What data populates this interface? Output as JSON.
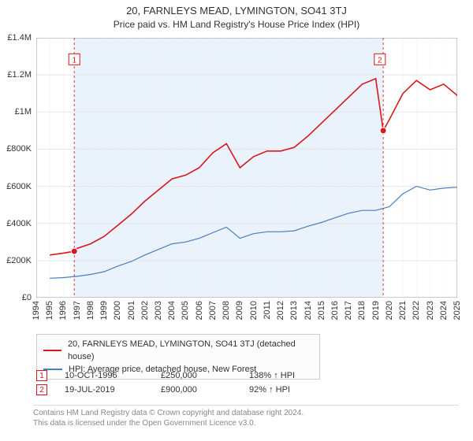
{
  "title_line1": "20, FARNLEYS MEAD, LYMINGTON, SO41 3TJ",
  "title_line2": "Price paid vs. HM Land Registry's House Price Index (HPI)",
  "chart": {
    "type": "line",
    "x_start_year": 1994,
    "x_end_year": 2025,
    "x_years": [
      1994,
      1995,
      1996,
      1997,
      1998,
      1999,
      2000,
      2001,
      2002,
      2003,
      2004,
      2005,
      2006,
      2007,
      2008,
      2009,
      2010,
      2011,
      2012,
      2013,
      2014,
      2015,
      2016,
      2017,
      2018,
      2019,
      2020,
      2021,
      2022,
      2023,
      2024,
      2025
    ],
    "y_min": 0,
    "y_max": 1400000,
    "y_ticks": [
      0,
      200000,
      400000,
      600000,
      800000,
      1000000,
      1200000,
      1400000
    ],
    "y_tick_labels": [
      "£0",
      "£200K",
      "£400K",
      "£600K",
      "£800K",
      "£1M",
      "£1.2M",
      "£1.4M"
    ],
    "background_color": "#ffffff",
    "shaded_band_color": "#eaf2fb",
    "gridline_color": "#e5e5e5",
    "axis_color": "#999999",
    "series": {
      "property": {
        "label": "20, FARNLEYS MEAD, LYMINGTON, SO41 3TJ (detached house)",
        "color": "#d6181f",
        "line_width": 1.6,
        "marker_color": "#d6181f",
        "data_years": [
          1995,
          1996,
          1996.8,
          1997,
          1998,
          1999,
          2000,
          2001,
          2002,
          2003,
          2004,
          2005,
          2006,
          2007,
          2008,
          2009,
          2010,
          2011,
          2012,
          2013,
          2014,
          2015,
          2016,
          2017,
          2018,
          2019,
          2019.55,
          2020,
          2021,
          2022,
          2023,
          2024,
          2025
        ],
        "data_values": [
          230000,
          240000,
          250000,
          265000,
          290000,
          330000,
          390000,
          450000,
          520000,
          580000,
          640000,
          660000,
          700000,
          780000,
          830000,
          700000,
          760000,
          790000,
          790000,
          810000,
          870000,
          940000,
          1010000,
          1080000,
          1150000,
          1180000,
          900000,
          960000,
          1100000,
          1170000,
          1120000,
          1150000,
          1090000
        ]
      },
      "hpi": {
        "label": "HPI: Average price, detached house, New Forest",
        "color": "#4a7ebb",
        "line_width": 1.2,
        "data_years": [
          1995,
          1996,
          1997,
          1998,
          1999,
          2000,
          2001,
          2002,
          2003,
          2004,
          2005,
          2006,
          2007,
          2008,
          2009,
          2010,
          2011,
          2012,
          2013,
          2014,
          2015,
          2016,
          2017,
          2018,
          2019,
          2020,
          2021,
          2022,
          2023,
          2024,
          2025
        ],
        "data_values": [
          105000,
          108000,
          115000,
          125000,
          140000,
          170000,
          195000,
          230000,
          260000,
          290000,
          300000,
          320000,
          350000,
          380000,
          320000,
          345000,
          355000,
          355000,
          360000,
          385000,
          405000,
          430000,
          455000,
          470000,
          470000,
          490000,
          560000,
          600000,
          580000,
          590000,
          595000
        ]
      }
    },
    "sale_markers": [
      {
        "idx": "1",
        "year": 1996.8,
        "value": 250000,
        "color": "#d6181f"
      },
      {
        "idx": "2",
        "year": 2019.55,
        "value": 900000,
        "color": "#d6181f"
      }
    ],
    "marker_labels": [
      {
        "idx": "1",
        "year": 1996.8,
        "y": 1280000,
        "color": "#d6181f"
      },
      {
        "idx": "2",
        "year": 2019.3,
        "y": 1280000,
        "color": "#d6181f"
      }
    ],
    "marker_vlines": [
      {
        "year": 1996.8,
        "color": "#d6181f",
        "dash": "3,3"
      },
      {
        "year": 2019.55,
        "color": "#d6181f",
        "dash": "3,3"
      }
    ]
  },
  "legend": {
    "border_color": "#cccccc",
    "bg_color": "#fbfbfb"
  },
  "sales": [
    {
      "idx": "1",
      "color": "#d6181f",
      "date": "10-OCT-1996",
      "price": "£250,000",
      "hpi": "138% ↑ HPI"
    },
    {
      "idx": "2",
      "color": "#d6181f",
      "date": "19-JUL-2019",
      "price": "£900,000",
      "hpi": "92% ↑ HPI"
    }
  ],
  "footer_line1": "Contains HM Land Registry data © Crown copyright and database right 2024.",
  "footer_line2": "This data is licensed under the Open Government Licence v3.0."
}
